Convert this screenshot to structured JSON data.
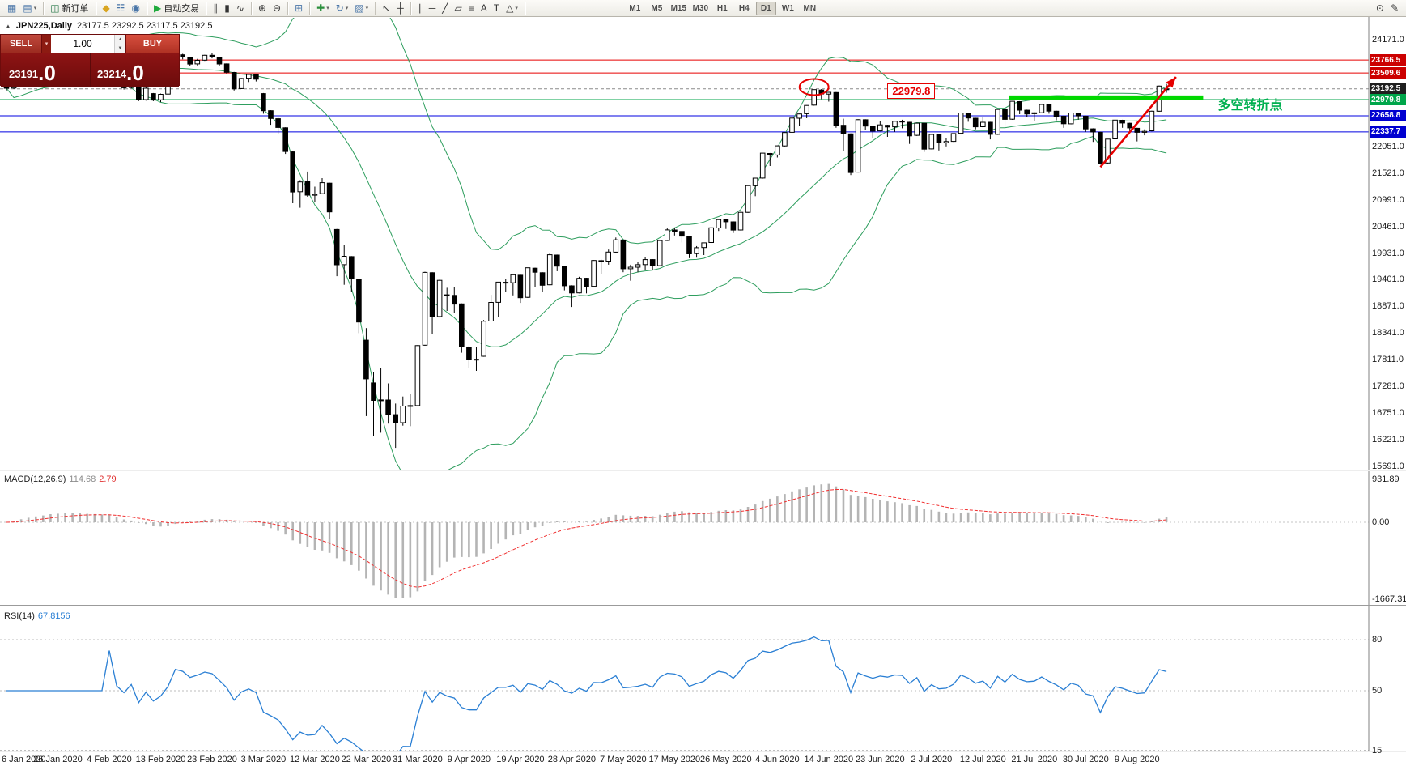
{
  "header": {
    "collapse_glyph": "▲",
    "symbol_period": "JPN225,Daily",
    "ohlc": "23177.5 23292.5 23117.5 23192.5"
  },
  "trade_panel": {
    "sell_label": "SELL",
    "buy_label": "BUY",
    "lot": "1.00",
    "sell_price_main": "23191",
    "sell_price_frac": ".0",
    "buy_price_main": "23214",
    "buy_price_frac": ".0"
  },
  "indicators": {
    "macd": {
      "label": "MACD(12,26,9)",
      "value_main": "114.68",
      "value_signal": "2.79"
    },
    "rsi": {
      "label": "RSI(14)",
      "value": "67.8156"
    }
  },
  "axis": {
    "price_labels": [
      "24171.0",
      "22051.0",
      "21521.0",
      "20991.0",
      "20461.0",
      "19931.0",
      "19401.0",
      "18871.0",
      "18341.0",
      "17811.0",
      "17281.0",
      "16751.0",
      "16221.0",
      "15691.0"
    ],
    "macd_labels": [
      "931.89",
      "0.00",
      "-1667.31"
    ],
    "rsi_labels": [
      "80",
      "50",
      "15"
    ]
  },
  "annotations": {
    "peak_ellipse": {
      "index": 110,
      "price": 23230,
      "color": "#e60000"
    },
    "highlight_segment": {
      "price": 23015,
      "x_from_index": 136.5,
      "x_to_index": 163,
      "color": "#00d800",
      "width": 6
    },
    "trend_arrow": {
      "from_index": 149,
      "from_price": 21640,
      "to_index": 159.3,
      "to_price": 23430,
      "color": "#e60000"
    },
    "price_label": {
      "text": "22979.8",
      "index": 120,
      "price": 23120,
      "color": "#e60000"
    },
    "turning_point_text": {
      "text": "多空转折点",
      "index": 165,
      "price": 22930,
      "color": "#00b050"
    }
  },
  "toolbar": {
    "groups": [
      [
        {
          "name": "new-chart-button",
          "glyph": "▦",
          "color": "#4a76a8"
        },
        {
          "name": "profiles-button",
          "glyph": "▤",
          "color": "#4a76a8",
          "caret": true
        }
      ],
      [
        {
          "name": "new-order-button",
          "glyph": "◫",
          "color": "#2f7d4f",
          "label": "新订单"
        }
      ],
      [
        {
          "name": "alerts-button",
          "glyph": "◆",
          "color": "#d9a520"
        },
        {
          "name": "market-watch-button",
          "glyph": "☷",
          "color": "#4a76a8"
        },
        {
          "name": "signals-button",
          "glyph": "◉",
          "color": "#4a76a8"
        }
      ],
      [
        {
          "name": "autotrading-button",
          "glyph": "▶",
          "color": "#1faa3c",
          "label": "自动交易"
        }
      ],
      [
        {
          "name": "bar-chart-button",
          "glyph": "∥"
        },
        {
          "name": "candlestick-chart-button",
          "glyph": "▮"
        },
        {
          "name": "line-chart-button",
          "glyph": "∿"
        }
      ],
      [
        {
          "name": "zoom-in-button",
          "glyph": "⊕"
        },
        {
          "name": "zoom-out-button",
          "glyph": "⊖"
        }
      ],
      [
        {
          "name": "tile-windows-button",
          "glyph": "⊞",
          "color": "#4a76a8"
        }
      ],
      [
        {
          "name": "indicators-button",
          "glyph": "✚",
          "color": "#2a8f3c",
          "caret": true
        },
        {
          "name": "periods-button",
          "glyph": "↻",
          "color": "#4a76a8",
          "caret": true
        },
        {
          "name": "templates-button",
          "glyph": "▨",
          "color": "#4a76a8",
          "caret": true
        }
      ],
      [
        {
          "name": "cursor-button",
          "glyph": "↖"
        },
        {
          "name": "crosshair-button",
          "glyph": "┼"
        }
      ],
      [
        {
          "name": "vline-button",
          "glyph": "∣"
        },
        {
          "name": "hline-button",
          "glyph": "─"
        },
        {
          "name": "trendline-button",
          "glyph": "╱"
        },
        {
          "name": "channel-button",
          "glyph": "▱"
        },
        {
          "name": "fibonacci-button",
          "glyph": "≡"
        },
        {
          "name": "text-button",
          "glyph": "A"
        },
        {
          "name": "text-label-button",
          "glyph": "T"
        },
        {
          "name": "arrows-button",
          "glyph": "△",
          "caret": true
        }
      ]
    ],
    "timeframes": [
      "M1",
      "M5",
      "M15",
      "M30",
      "H1",
      "H4",
      "D1",
      "W1",
      "MN"
    ],
    "active_timeframe": "D1",
    "right_icons": [
      {
        "name": "search-button",
        "glyph": "⊙"
      },
      {
        "name": "quick-message-button",
        "glyph": "✎"
      }
    ]
  },
  "chart_data": {
    "type": "candlestick",
    "symbol": "JPN225",
    "timeframe": "Daily",
    "ohlc_current": {
      "open": 23177.5,
      "high": 23292.5,
      "low": 23117.5,
      "close": 23192.5
    },
    "x_labels": [
      "6 Jan 2020",
      "26 Jan 2020",
      "4 Feb 2020",
      "13 Feb 2020",
      "23 Feb 2020",
      "3 Mar 2020",
      "12 Mar 2020",
      "22 Mar 2020",
      "31 Mar 2020",
      "9 Apr 2020",
      "19 Apr 2020",
      "28 Apr 2020",
      "7 May 2020",
      "17 May 2020",
      "26 May 2020",
      "4 Jun 2020",
      "14 Jun 2020",
      "23 Jun 2020",
      "2 Jul 2020",
      "12 Jul 2020",
      "21 Jul 2020",
      "30 Jul 2020",
      "9 Aug 2020"
    ],
    "levels": [
      {
        "price": 23766.5,
        "label": "23766.5",
        "line_color": "#e60000",
        "tag_color": "#cc0000",
        "style": "solid"
      },
      {
        "price": 23509.6,
        "label": "23509.6",
        "line_color": "#e60000",
        "tag_color": "#cc0000",
        "style": "solid"
      },
      {
        "price": 23192.5,
        "label": "23192.5",
        "line_color": "#8a8a8a",
        "tag_color": "#1f1f1f",
        "style": "dash"
      },
      {
        "price": 22979.8,
        "label": "22979.8",
        "line_color": "#00a64a",
        "tag_color": "#00a64a",
        "style": "solid"
      },
      {
        "price": 22658.8,
        "label": "22658.8",
        "line_color": "#0000e0",
        "tag_color": "#0000d0",
        "style": "solid"
      },
      {
        "price": 22337.7,
        "label": "22337.7",
        "line_color": "#0000e0",
        "tag_color": "#0000d0",
        "style": "solid"
      }
    ],
    "overlays": {
      "bollinger_bands": {
        "period": 20,
        "deviation": 2,
        "color": "#2e9e5e"
      }
    },
    "indicator_panes": [
      {
        "type": "macd",
        "label": "MACD(12,26,9)",
        "values": [
          114.68,
          2.79
        ],
        "axis_labels": [
          "931.89",
          "0.00",
          "-1667.31"
        ],
        "histogram_color": "#b4b4b4",
        "signal_color": "#f03030",
        "signal_style": "dashed"
      },
      {
        "type": "rsi",
        "label": "RSI(14)",
        "value": 67.8156,
        "axis_labels": [
          "80",
          "50",
          "15"
        ],
        "line_color": "#2a7fd4",
        "levels": [
          80,
          50,
          15
        ]
      }
    ],
    "candles": [
      [
        23320,
        23330,
        23150,
        23205
      ],
      [
        23210,
        23590,
        23190,
        23575
      ],
      [
        23575,
        23750,
        23400,
        23740
      ],
      [
        23745,
        23820,
        23690,
        23810
      ],
      [
        23810,
        23870,
        23760,
        23850
      ],
      [
        23850,
        23900,
        23820,
        23860
      ],
      [
        23860,
        24040,
        23830,
        24025
      ],
      [
        24020,
        24041,
        23890,
        23915
      ],
      [
        23915,
        23960,
        23860,
        23930
      ],
      [
        23925,
        23960,
        23820,
        23865
      ],
      [
        23860,
        23940,
        23810,
        23905
      ],
      [
        23900,
        23910,
        23760,
        23805
      ],
      [
        23810,
        23880,
        23770,
        23865
      ],
      [
        23860,
        23870,
        23620,
        23795
      ],
      [
        23795,
        23880,
        23720,
        23820
      ],
      [
        23560,
        23570,
        23320,
        23345
      ],
      [
        23350,
        23400,
        23180,
        23215
      ],
      [
        23220,
        23390,
        23200,
        23380
      ],
      [
        23375,
        23380,
        22950,
        22977
      ],
      [
        22980,
        23230,
        22960,
        23205
      ],
      [
        23100,
        23110,
        22950,
        22972
      ],
      [
        22975,
        23100,
        22930,
        23085
      ],
      [
        23090,
        23330,
        23080,
        23320
      ],
      [
        23325,
        23880,
        23320,
        23874
      ],
      [
        23870,
        23890,
        23780,
        23828
      ],
      [
        23820,
        23830,
        23650,
        23686
      ],
      [
        23690,
        23790,
        23660,
        23760
      ],
      [
        23765,
        23870,
        23750,
        23861
      ],
      [
        23860,
        23910,
        23800,
        23828
      ],
      [
        23825,
        23830,
        23640,
        23688
      ],
      [
        23690,
        23700,
        23480,
        23523
      ],
      [
        23520,
        23530,
        23160,
        23194
      ],
      [
        23200,
        23410,
        23190,
        23401
      ],
      [
        23405,
        23490,
        23330,
        23479
      ],
      [
        23475,
        23480,
        23340,
        23386
      ],
      [
        23100,
        23110,
        22700,
        22760
      ],
      [
        22760,
        22770,
        22480,
        22605
      ],
      [
        22600,
        22620,
        22300,
        22426
      ],
      [
        22420,
        22430,
        21900,
        21948
      ],
      [
        21940,
        21950,
        20920,
        21143
      ],
      [
        21150,
        21380,
        20830,
        21344
      ],
      [
        21350,
        21550,
        21050,
        21082
      ],
      [
        21080,
        21250,
        20950,
        21100
      ],
      [
        21110,
        21420,
        21100,
        21329
      ],
      [
        21320,
        21330,
        20610,
        20749
      ],
      [
        20400,
        20410,
        19470,
        19699
      ],
      [
        19700,
        20100,
        19300,
        19867
      ],
      [
        19860,
        19870,
        19150,
        19416
      ],
      [
        19410,
        19420,
        18340,
        18560
      ],
      [
        18200,
        18440,
        16690,
        17431
      ],
      [
        17350,
        17560,
        16300,
        17002
      ],
      [
        17000,
        17640,
        16360,
        17012
      ],
      [
        17010,
        17340,
        16540,
        16727
      ],
      [
        16720,
        16940,
        16060,
        16552
      ],
      [
        16560,
        17080,
        16500,
        16890
      ],
      [
        16900,
        17130,
        16490,
        16888
      ],
      [
        16900,
        18100,
        16890,
        18092
      ],
      [
        18100,
        19560,
        18090,
        19546
      ],
      [
        19540,
        19550,
        18330,
        18665
      ],
      [
        18670,
        19400,
        18650,
        19389
      ],
      [
        19100,
        19240,
        18780,
        19085
      ],
      [
        19090,
        19260,
        18740,
        18917
      ],
      [
        18920,
        18930,
        17950,
        18065
      ],
      [
        18060,
        18080,
        17650,
        17818
      ],
      [
        17820,
        18060,
        17590,
        17820
      ],
      [
        17880,
        18600,
        17870,
        18576
      ],
      [
        18580,
        19100,
        18570,
        18950
      ],
      [
        18950,
        19360,
        18660,
        19353
      ],
      [
        19350,
        19420,
        19150,
        19346
      ],
      [
        19340,
        19500,
        19090,
        19499
      ],
      [
        19490,
        19500,
        18940,
        19043
      ],
      [
        19050,
        19640,
        19040,
        19638
      ],
      [
        19630,
        19640,
        19250,
        19550
      ],
      [
        19540,
        19550,
        19150,
        19290
      ],
      [
        19300,
        19920,
        19290,
        19897
      ],
      [
        19890,
        19900,
        19570,
        19669
      ],
      [
        19660,
        19670,
        19190,
        19280
      ],
      [
        19280,
        19290,
        18860,
        19138
      ],
      [
        19140,
        19460,
        19130,
        19429
      ],
      [
        19430,
        19440,
        19130,
        19262
      ],
      [
        19270,
        19790,
        19260,
        19783
      ],
      [
        19780,
        19800,
        19520,
        19771
      ],
      [
        19770,
        20000,
        19700,
        19950
      ],
      [
        19950,
        20240,
        19940,
        20194
      ],
      [
        20190,
        20200,
        19550,
        19619
      ],
      [
        19620,
        19700,
        19380,
        19650
      ],
      [
        19650,
        19760,
        19550,
        19700
      ],
      [
        19700,
        19850,
        19600,
        19800
      ],
      [
        19800,
        19810,
        19590,
        19674
      ],
      [
        19680,
        20190,
        19670,
        20179
      ],
      [
        20180,
        20420,
        20170,
        20391
      ],
      [
        20390,
        20440,
        20280,
        20366
      ],
      [
        20360,
        20370,
        20140,
        20267
      ],
      [
        20260,
        20270,
        19830,
        19915
      ],
      [
        19920,
        20070,
        19840,
        20037
      ],
      [
        20040,
        20140,
        19890,
        20134
      ],
      [
        20140,
        20440,
        20130,
        20433
      ],
      [
        20430,
        20600,
        20370,
        20595
      ],
      [
        20590,
        20600,
        20410,
        20552
      ],
      [
        20550,
        20560,
        20330,
        20388
      ],
      [
        20390,
        20750,
        20380,
        20741
      ],
      [
        20740,
        21280,
        20730,
        21271
      ],
      [
        21270,
        21420,
        21060,
        21419
      ],
      [
        21420,
        21920,
        21410,
        21916
      ],
      [
        21910,
        21920,
        21660,
        21878
      ],
      [
        21880,
        22070,
        21830,
        22062
      ],
      [
        22060,
        22330,
        22050,
        22326
      ],
      [
        22330,
        22620,
        22320,
        22614
      ],
      [
        22610,
        22700,
        22450,
        22696
      ],
      [
        22700,
        22870,
        22610,
        22864
      ],
      [
        22870,
        23180,
        22860,
        23178
      ],
      [
        23170,
        23190,
        22990,
        23091
      ],
      [
        23090,
        23130,
        22940,
        23125
      ],
      [
        23120,
        23130,
        22420,
        22473
      ],
      [
        22470,
        22600,
        21960,
        22305
      ],
      [
        22300,
        22310,
        21480,
        21531
      ],
      [
        21540,
        22590,
        21530,
        22582
      ],
      [
        22580,
        22590,
        22370,
        22455
      ],
      [
        22450,
        22460,
        22210,
        22355
      ],
      [
        22360,
        22560,
        22350,
        22479
      ],
      [
        22470,
        22480,
        22240,
        22437
      ],
      [
        22440,
        22560,
        22340,
        22549
      ],
      [
        22550,
        22580,
        22410,
        22534
      ],
      [
        22530,
        22540,
        22100,
        22260
      ],
      [
        22270,
        22520,
        22260,
        22512
      ],
      [
        22510,
        22520,
        21940,
        21995
      ],
      [
        22000,
        22300,
        21990,
        22288
      ],
      [
        22290,
        22300,
        21970,
        22122
      ],
      [
        22120,
        22220,
        22050,
        22146
      ],
      [
        22150,
        22310,
        22140,
        22306
      ],
      [
        22310,
        22720,
        22300,
        22714
      ],
      [
        22710,
        22720,
        22540,
        22615
      ],
      [
        22610,
        22620,
        22390,
        22439
      ],
      [
        22440,
        22630,
        22430,
        22529
      ],
      [
        22530,
        22540,
        22190,
        22291
      ],
      [
        22290,
        22790,
        22280,
        22785
      ],
      [
        22780,
        22790,
        22430,
        22587
      ],
      [
        22590,
        22950,
        22580,
        22946
      ],
      [
        22940,
        22950,
        22690,
        22771
      ],
      [
        22770,
        22780,
        22630,
        22696
      ],
      [
        22700,
        22730,
        22560,
        22718
      ],
      [
        22720,
        22890,
        22710,
        22884
      ],
      [
        22880,
        22890,
        22700,
        22752
      ],
      [
        22750,
        22760,
        22570,
        22650
      ],
      [
        22650,
        22660,
        22420,
        22500
      ],
      [
        22500,
        22720,
        22490,
        22715
      ],
      [
        22710,
        22720,
        22580,
        22657
      ],
      [
        22650,
        22660,
        22340,
        22397
      ],
      [
        22400,
        22410,
        22140,
        22339
      ],
      [
        22330,
        22340,
        21690,
        21710
      ],
      [
        21720,
        22200,
        21710,
        22195
      ],
      [
        22200,
        22580,
        22190,
        22573
      ],
      [
        22570,
        22580,
        22420,
        22515
      ],
      [
        22510,
        22520,
        22330,
        22418
      ],
      [
        22410,
        22420,
        22150,
        22330
      ],
      [
        22330,
        22390,
        22270,
        22350
      ],
      [
        22360,
        22760,
        22350,
        22750
      ],
      [
        22750,
        23260,
        22740,
        23249
      ],
      [
        23177.5,
        23292.5,
        23117.5,
        23192.5
      ]
    ]
  }
}
